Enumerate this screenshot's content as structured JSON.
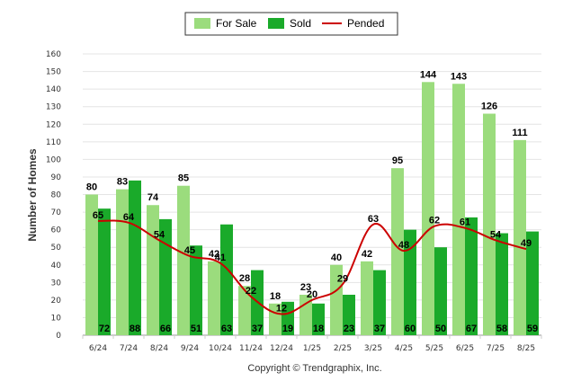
{
  "chart_data": {
    "type": "bar",
    "categories": [
      "6/24",
      "7/24",
      "8/24",
      "9/24",
      "10/24",
      "11/24",
      "12/24",
      "1/25",
      "2/25",
      "3/25",
      "4/25",
      "5/25",
      "6/25",
      "7/25",
      "8/25"
    ],
    "series": [
      {
        "name": "For Sale",
        "type": "bar",
        "color": "#9bdc7d",
        "values": [
          80,
          83,
          74,
          85,
          42,
          28,
          18,
          23,
          40,
          42,
          95,
          144,
          143,
          126,
          111
        ]
      },
      {
        "name": "Sold",
        "type": "bar",
        "color": "#1aaa2a",
        "values": [
          72,
          88,
          66,
          51,
          63,
          37,
          19,
          18,
          23,
          37,
          60,
          50,
          67,
          58,
          59
        ]
      },
      {
        "name": "Pended",
        "type": "line",
        "color": "#cc0000",
        "values": [
          65,
          64,
          54,
          45,
          41,
          22,
          12,
          20,
          29,
          63,
          48,
          62,
          61,
          54,
          49
        ]
      }
    ],
    "title": "",
    "xlabel": "",
    "ylabel": "Number of Homes",
    "ylim": [
      0,
      160
    ],
    "yticks": [
      0,
      10,
      20,
      30,
      40,
      50,
      60,
      70,
      80,
      90,
      100,
      110,
      120,
      130,
      140,
      150,
      160
    ],
    "grid": true,
    "legend": "top-center"
  },
  "footer": {
    "copyright": "Copyright © Trendgraphix, Inc."
  }
}
